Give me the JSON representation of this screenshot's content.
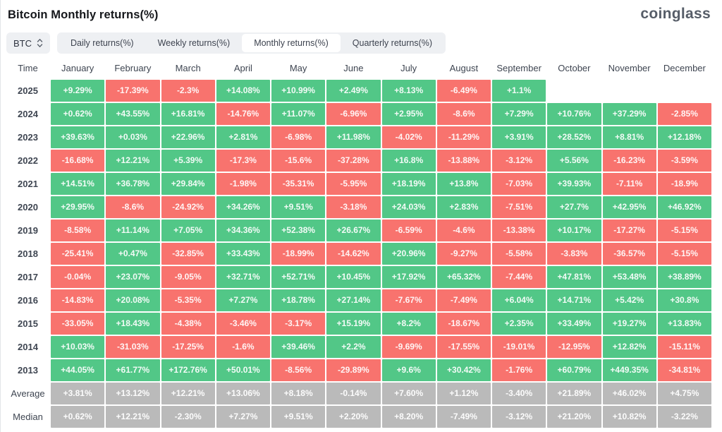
{
  "header": {
    "title": "Bitcoin Monthly returns(%)",
    "logo": "coinglass"
  },
  "toolbar": {
    "symbol": "BTC",
    "symbol_select_icon": "up-down-arrows-icon",
    "tabs": [
      {
        "label": "Daily returns(%)",
        "active": false
      },
      {
        "label": "Weekly returns(%)",
        "active": false
      },
      {
        "label": "Monthly returns(%)",
        "active": true
      },
      {
        "label": "Quarterly returns(%)",
        "active": false
      }
    ]
  },
  "colors": {
    "positive": "#52c787",
    "negative": "#f8736e",
    "summary": "#bababa"
  },
  "chart_data": {
    "type": "heatmap",
    "title": "Bitcoin Monthly returns(%)",
    "columns": [
      "Time",
      "January",
      "February",
      "March",
      "April",
      "May",
      "June",
      "July",
      "August",
      "September",
      "October",
      "November",
      "December"
    ],
    "rows": [
      {
        "label": "2025",
        "type": "year",
        "values": [
          "+9.29%",
          "-17.39%",
          "-2.3%",
          "+14.08%",
          "+10.99%",
          "+2.49%",
          "+8.13%",
          "-6.49%",
          "+1.1%",
          null,
          null,
          null
        ]
      },
      {
        "label": "2024",
        "type": "year",
        "values": [
          "+0.62%",
          "+43.55%",
          "+16.81%",
          "-14.76%",
          "+11.07%",
          "-6.96%",
          "+2.95%",
          "-8.6%",
          "+7.29%",
          "+10.76%",
          "+37.29%",
          "-2.85%"
        ]
      },
      {
        "label": "2023",
        "type": "year",
        "values": [
          "+39.63%",
          "+0.03%",
          "+22.96%",
          "+2.81%",
          "-6.98%",
          "+11.98%",
          "-4.02%",
          "-11.29%",
          "+3.91%",
          "+28.52%",
          "+8.81%",
          "+12.18%"
        ]
      },
      {
        "label": "2022",
        "type": "year",
        "values": [
          "-16.68%",
          "+12.21%",
          "+5.39%",
          "-17.3%",
          "-15.6%",
          "-37.28%",
          "+16.8%",
          "-13.88%",
          "-3.12%",
          "+5.56%",
          "-16.23%",
          "-3.59%"
        ]
      },
      {
        "label": "2021",
        "type": "year",
        "values": [
          "+14.51%",
          "+36.78%",
          "+29.84%",
          "-1.98%",
          "-35.31%",
          "-5.95%",
          "+18.19%",
          "+13.8%",
          "-7.03%",
          "+39.93%",
          "-7.11%",
          "-18.9%"
        ]
      },
      {
        "label": "2020",
        "type": "year",
        "values": [
          "+29.95%",
          "-8.6%",
          "-24.92%",
          "+34.26%",
          "+9.51%",
          "-3.18%",
          "+24.03%",
          "+2.83%",
          "-7.51%",
          "+27.7%",
          "+42.95%",
          "+46.92%"
        ]
      },
      {
        "label": "2019",
        "type": "year",
        "values": [
          "-8.58%",
          "+11.14%",
          "+7.05%",
          "+34.36%",
          "+52.38%",
          "+26.67%",
          "-6.59%",
          "-4.6%",
          "-13.38%",
          "+10.17%",
          "-17.27%",
          "-5.15%"
        ]
      },
      {
        "label": "2018",
        "type": "year",
        "values": [
          "-25.41%",
          "+0.47%",
          "-32.85%",
          "+33.43%",
          "-18.99%",
          "-14.62%",
          "+20.96%",
          "-9.27%",
          "-5.58%",
          "-3.83%",
          "-36.57%",
          "-5.15%"
        ]
      },
      {
        "label": "2017",
        "type": "year",
        "values": [
          "-0.04%",
          "+23.07%",
          "-9.05%",
          "+32.71%",
          "+52.71%",
          "+10.45%",
          "+17.92%",
          "+65.32%",
          "-7.44%",
          "+47.81%",
          "+53.48%",
          "+38.89%"
        ]
      },
      {
        "label": "2016",
        "type": "year",
        "values": [
          "-14.83%",
          "+20.08%",
          "-5.35%",
          "+7.27%",
          "+18.78%",
          "+27.14%",
          "-7.67%",
          "-7.49%",
          "+6.04%",
          "+14.71%",
          "+5.42%",
          "+30.8%"
        ]
      },
      {
        "label": "2015",
        "type": "year",
        "values": [
          "-33.05%",
          "+18.43%",
          "-4.38%",
          "-3.46%",
          "-3.17%",
          "+15.19%",
          "+8.2%",
          "-18.67%",
          "+2.35%",
          "+33.49%",
          "+19.27%",
          "+13.83%"
        ]
      },
      {
        "label": "2014",
        "type": "year",
        "values": [
          "+10.03%",
          "-31.03%",
          "-17.25%",
          "-1.6%",
          "+39.46%",
          "+2.2%",
          "-9.69%",
          "-17.55%",
          "-19.01%",
          "-12.95%",
          "+12.82%",
          "-15.11%"
        ]
      },
      {
        "label": "2013",
        "type": "year",
        "values": [
          "+44.05%",
          "+61.77%",
          "+172.76%",
          "+50.01%",
          "-8.56%",
          "-29.89%",
          "+9.6%",
          "+30.42%",
          "-1.76%",
          "+60.79%",
          "+449.35%",
          "-34.81%"
        ]
      },
      {
        "label": "Average",
        "type": "summary",
        "values": [
          "+3.81%",
          "+13.12%",
          "+12.21%",
          "+13.06%",
          "+8.18%",
          "-0.14%",
          "+7.60%",
          "+1.12%",
          "-3.40%",
          "+21.89%",
          "+46.02%",
          "+4.75%"
        ]
      },
      {
        "label": "Median",
        "type": "summary",
        "values": [
          "+0.62%",
          "+12.21%",
          "-2.30%",
          "+7.27%",
          "+9.51%",
          "+2.20%",
          "+8.20%",
          "-7.49%",
          "-3.12%",
          "+21.20%",
          "+10.82%",
          "-3.22%"
        ]
      }
    ]
  }
}
